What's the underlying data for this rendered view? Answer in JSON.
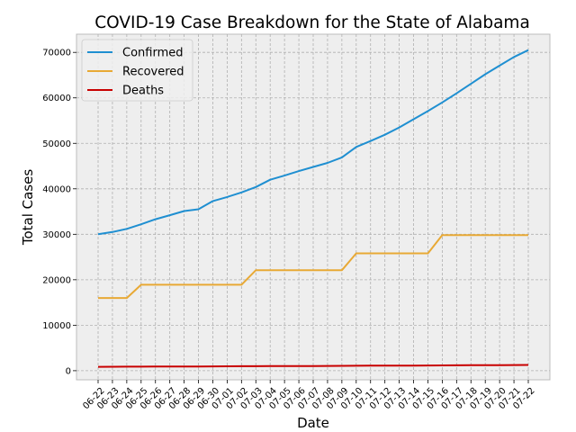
{
  "chart_data": {
    "type": "line",
    "title": "COVID-19 Case Breakdown for the State of Alabama",
    "xlabel": "Date",
    "ylabel": "Total Cases",
    "ylim": [
      -2000,
      74000
    ],
    "yticks": [
      0,
      10000,
      20000,
      30000,
      40000,
      50000,
      60000,
      70000
    ],
    "grid": true,
    "legend_position": "upper-left",
    "categories": [
      "06-22",
      "06-23",
      "06-24",
      "06-25",
      "06-26",
      "06-27",
      "06-28",
      "06-29",
      "06-30",
      "07-01",
      "07-02",
      "07-03",
      "07-04",
      "07-05",
      "07-06",
      "07-07",
      "07-08",
      "07-09",
      "07-10",
      "07-11",
      "07-12",
      "07-13",
      "07-14",
      "07-15",
      "07-16",
      "07-17",
      "07-18",
      "07-19",
      "07-20",
      "07-21",
      "07-22"
    ],
    "series": [
      {
        "name": "Confirmed",
        "color": "#1f8fd1",
        "values": [
          30000,
          30500,
          31200,
          32200,
          33300,
          34200,
          35100,
          35500,
          37300,
          38200,
          39200,
          40400,
          42000,
          42900,
          43900,
          44800,
          45700,
          46900,
          49200,
          50500,
          51900,
          53500,
          55300,
          57100,
          59000,
          61000,
          63100,
          65200,
          67100,
          69000,
          70500
        ]
      },
      {
        "name": "Recovered",
        "color": "#e8a935",
        "values": [
          16000,
          16000,
          16000,
          18900,
          18900,
          18900,
          18900,
          18900,
          18900,
          18900,
          18900,
          22100,
          22100,
          22100,
          22100,
          22100,
          22100,
          22100,
          25800,
          25800,
          25800,
          25800,
          25800,
          25800,
          29800,
          29800,
          29800,
          29800,
          29800,
          29800,
          29800
        ]
      },
      {
        "name": "Deaths",
        "color": "#c80000",
        "values": [
          850,
          860,
          880,
          890,
          900,
          910,
          920,
          930,
          950,
          960,
          980,
          990,
          1000,
          1010,
          1020,
          1030,
          1040,
          1060,
          1080,
          1100,
          1110,
          1120,
          1130,
          1150,
          1170,
          1190,
          1200,
          1220,
          1230,
          1250,
          1270
        ]
      }
    ]
  }
}
